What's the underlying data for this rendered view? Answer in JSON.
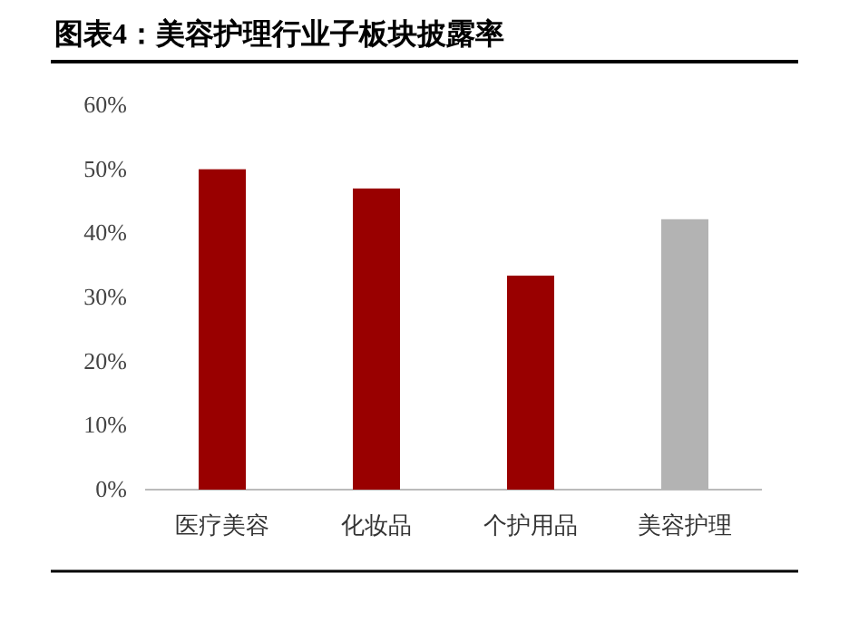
{
  "chart_data": {
    "type": "bar",
    "title": "图表4：美容护理行业子板块披露率",
    "categories": [
      "医疗美容",
      "化妆品",
      "个护用品",
      "美容护理"
    ],
    "values": [
      50,
      47,
      33.4,
      42.2
    ],
    "colors": [
      "#990000",
      "#990000",
      "#990000",
      "#b3b3b3"
    ],
    "ylim": [
      0,
      60
    ],
    "yticks": [
      {
        "value": 0,
        "label": "0%"
      },
      {
        "value": 10,
        "label": "10%"
      },
      {
        "value": 20,
        "label": "20%"
      },
      {
        "value": 30,
        "label": "30%"
      },
      {
        "value": 40,
        "label": "40%"
      },
      {
        "value": 50,
        "label": "50%"
      },
      {
        "value": 60,
        "label": "60%"
      }
    ]
  }
}
